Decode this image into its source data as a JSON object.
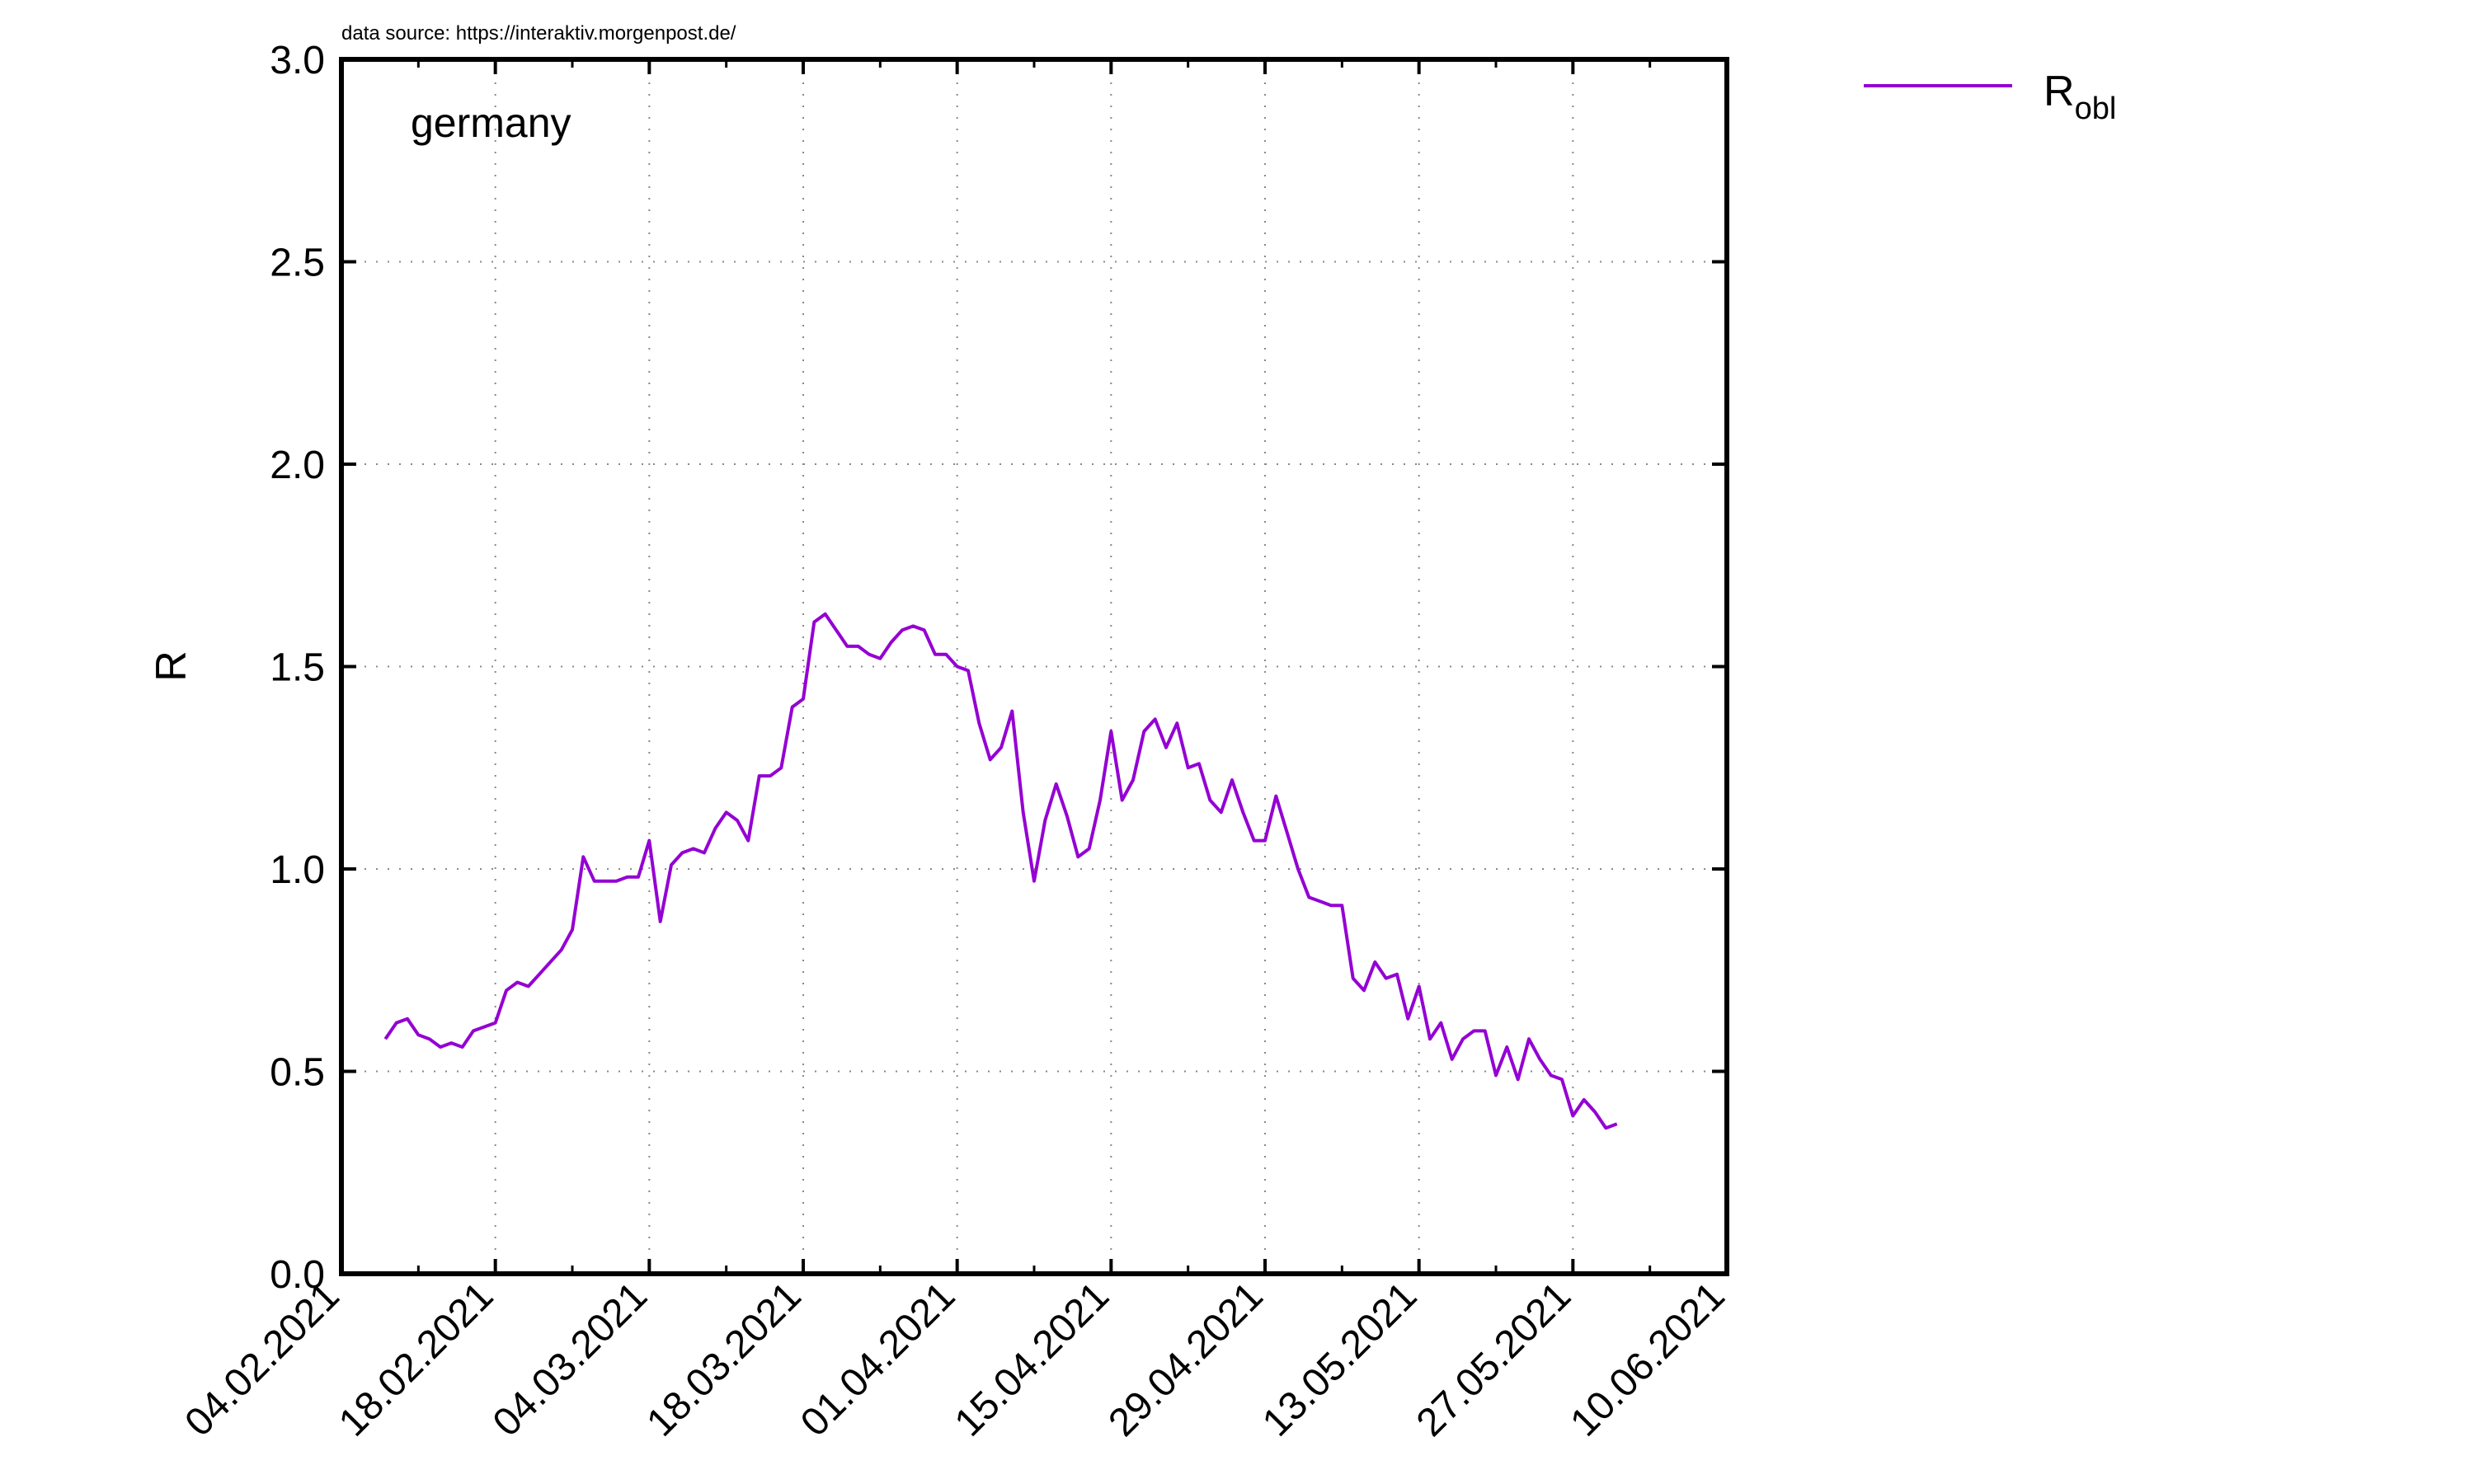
{
  "source_text": "data source: https://interaktiv.morgenpost.de/",
  "chart_data": {
    "type": "line",
    "title": "",
    "annotation": "germany",
    "xlabel": "",
    "ylabel": "R",
    "ylim": [
      0.0,
      3.0
    ],
    "y_ticks": [
      "0.0",
      "0.5",
      "1.0",
      "1.5",
      "2.0",
      "2.5",
      "3.0"
    ],
    "xlim": [
      "04.02.2021",
      "10.06.2021"
    ],
    "x_ticks": [
      "04.02.2021",
      "18.02.2021",
      "04.03.2021",
      "18.03.2021",
      "01.04.2021",
      "15.04.2021",
      "29.04.2021",
      "13.05.2021",
      "27.05.2021",
      "10.06.2021"
    ],
    "grid": true,
    "legend_position": "top-right (outside plot)",
    "series": [
      {
        "name": "R",
        "name_subscript": "obl",
        "color": "#9400d3",
        "points": [
          [
            "08.02.2021",
            0.58
          ],
          [
            "09.02.2021",
            0.62
          ],
          [
            "10.02.2021",
            0.63
          ],
          [
            "11.02.2021",
            0.59
          ],
          [
            "12.02.2021",
            0.58
          ],
          [
            "13.02.2021",
            0.56
          ],
          [
            "14.02.2021",
            0.57
          ],
          [
            "15.02.2021",
            0.56
          ],
          [
            "16.02.2021",
            0.6
          ],
          [
            "17.02.2021",
            0.61
          ],
          [
            "18.02.2021",
            0.62
          ],
          [
            "19.02.2021",
            0.7
          ],
          [
            "20.02.2021",
            0.72
          ],
          [
            "21.02.2021",
            0.71
          ],
          [
            "22.02.2021",
            0.74
          ],
          [
            "23.02.2021",
            0.77
          ],
          [
            "24.02.2021",
            0.8
          ],
          [
            "25.02.2021",
            0.85
          ],
          [
            "26.02.2021",
            1.03
          ],
          [
            "27.02.2021",
            0.97
          ],
          [
            "28.02.2021",
            0.97
          ],
          [
            "01.03.2021",
            0.97
          ],
          [
            "02.03.2021",
            0.98
          ],
          [
            "03.03.2021",
            0.98
          ],
          [
            "04.03.2021",
            1.07
          ],
          [
            "05.03.2021",
            0.87
          ],
          [
            "06.03.2021",
            1.01
          ],
          [
            "07.03.2021",
            1.04
          ],
          [
            "08.03.2021",
            1.05
          ],
          [
            "09.03.2021",
            1.04
          ],
          [
            "10.03.2021",
            1.1
          ],
          [
            "11.03.2021",
            1.14
          ],
          [
            "12.03.2021",
            1.12
          ],
          [
            "13.03.2021",
            1.07
          ],
          [
            "14.03.2021",
            1.23
          ],
          [
            "15.03.2021",
            1.23
          ],
          [
            "16.03.2021",
            1.25
          ],
          [
            "17.03.2021",
            1.4
          ],
          [
            "18.03.2021",
            1.42
          ],
          [
            "19.03.2021",
            1.61
          ],
          [
            "20.03.2021",
            1.63
          ],
          [
            "21.03.2021",
            1.59
          ],
          [
            "22.03.2021",
            1.55
          ],
          [
            "23.03.2021",
            1.55
          ],
          [
            "24.03.2021",
            1.53
          ],
          [
            "25.03.2021",
            1.52
          ],
          [
            "26.03.2021",
            1.56
          ],
          [
            "27.03.2021",
            1.59
          ],
          [
            "28.03.2021",
            1.6
          ],
          [
            "29.03.2021",
            1.59
          ],
          [
            "30.03.2021",
            1.53
          ],
          [
            "31.03.2021",
            1.53
          ],
          [
            "01.04.2021",
            1.5
          ],
          [
            "02.04.2021",
            1.49
          ],
          [
            "03.04.2021",
            1.36
          ],
          [
            "04.04.2021",
            1.27
          ],
          [
            "05.04.2021",
            1.3
          ],
          [
            "06.04.2021",
            1.39
          ],
          [
            "07.04.2021",
            1.14
          ],
          [
            "08.04.2021",
            0.97
          ],
          [
            "09.04.2021",
            1.12
          ],
          [
            "10.04.2021",
            1.21
          ],
          [
            "11.04.2021",
            1.13
          ],
          [
            "12.04.2021",
            1.03
          ],
          [
            "13.04.2021",
            1.05
          ],
          [
            "14.04.2021",
            1.17
          ],
          [
            "15.04.2021",
            1.34
          ],
          [
            "16.04.2021",
            1.17
          ],
          [
            "17.04.2021",
            1.22
          ],
          [
            "18.04.2021",
            1.34
          ],
          [
            "19.04.2021",
            1.37
          ],
          [
            "20.04.2021",
            1.3
          ],
          [
            "21.04.2021",
            1.36
          ],
          [
            "22.04.2021",
            1.25
          ],
          [
            "23.04.2021",
            1.26
          ],
          [
            "24.04.2021",
            1.17
          ],
          [
            "25.04.2021",
            1.14
          ],
          [
            "26.04.2021",
            1.22
          ],
          [
            "27.04.2021",
            1.14
          ],
          [
            "28.04.2021",
            1.07
          ],
          [
            "29.04.2021",
            1.07
          ],
          [
            "30.04.2021",
            1.18
          ],
          [
            "01.05.2021",
            1.09
          ],
          [
            "02.05.2021",
            1.0
          ],
          [
            "03.05.2021",
            0.93
          ],
          [
            "04.05.2021",
            0.92
          ],
          [
            "05.05.2021",
            0.91
          ],
          [
            "06.05.2021",
            0.91
          ],
          [
            "07.05.2021",
            0.73
          ],
          [
            "08.05.2021",
            0.7
          ],
          [
            "09.05.2021",
            0.77
          ],
          [
            "10.05.2021",
            0.73
          ],
          [
            "11.05.2021",
            0.74
          ],
          [
            "12.05.2021",
            0.63
          ],
          [
            "13.05.2021",
            0.71
          ],
          [
            "14.05.2021",
            0.58
          ],
          [
            "15.05.2021",
            0.62
          ],
          [
            "16.05.2021",
            0.53
          ],
          [
            "17.05.2021",
            0.58
          ],
          [
            "18.05.2021",
            0.6
          ],
          [
            "19.05.2021",
            0.6
          ],
          [
            "20.05.2021",
            0.49
          ],
          [
            "21.05.2021",
            0.56
          ],
          [
            "22.05.2021",
            0.48
          ],
          [
            "23.05.2021",
            0.58
          ],
          [
            "24.05.2021",
            0.53
          ],
          [
            "25.05.2021",
            0.49
          ],
          [
            "26.05.2021",
            0.48
          ],
          [
            "27.05.2021",
            0.39
          ],
          [
            "28.05.2021",
            0.43
          ],
          [
            "29.05.2021",
            0.4
          ],
          [
            "30.05.2021",
            0.36
          ],
          [
            "31.05.2021",
            0.37
          ]
        ]
      }
    ]
  }
}
